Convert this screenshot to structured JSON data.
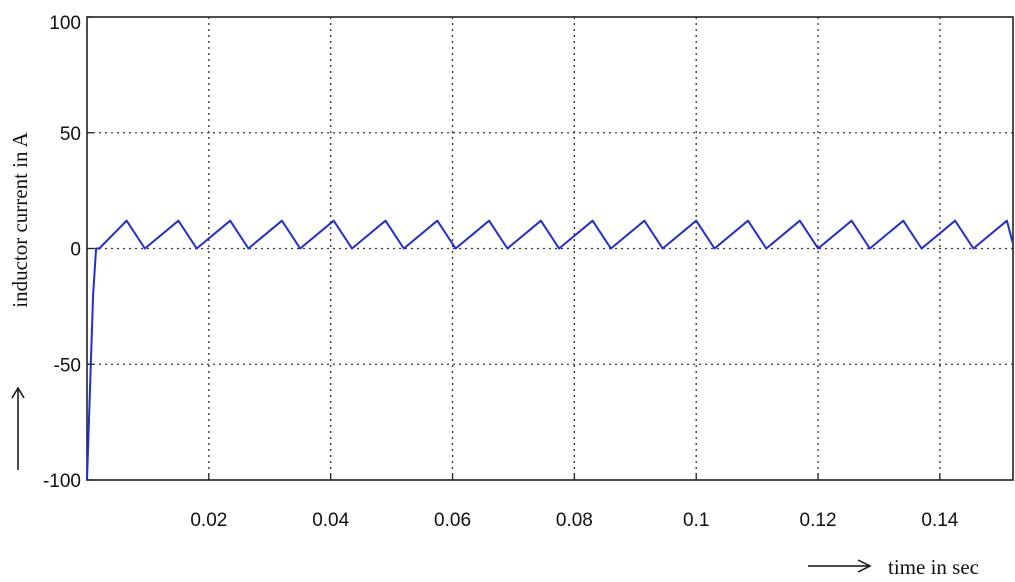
{
  "chart_data": {
    "type": "line",
    "title": "",
    "xlabel": "time  in sec",
    "ylabel": "inductor current in A",
    "xlim": [
      0,
      0.152
    ],
    "ylim": [
      -100,
      100
    ],
    "x_ticks": [
      0.02,
      0.04,
      0.06,
      0.08,
      0.1,
      0.12,
      0.14
    ],
    "x_tick_labels": [
      "0.02",
      "0.04",
      "0.06",
      "0.08",
      "0.1",
      "0.12",
      "0.14"
    ],
    "y_ticks": [
      -100,
      -50,
      0,
      50,
      100
    ],
    "y_tick_labels": [
      "-100",
      "-50",
      "0",
      "50",
      "100"
    ],
    "grid": true,
    "series": [
      {
        "color": "#1f2fd6",
        "x": [
          0,
          0.001,
          0.0015,
          0.002,
          0.0065,
          0.0095,
          0.015,
          0.018,
          0.0235,
          0.0265,
          0.032,
          0.035,
          0.0405,
          0.0435,
          0.049,
          0.052,
          0.0575,
          0.0605,
          0.066,
          0.069,
          0.0745,
          0.0775,
          0.083,
          0.086,
          0.0915,
          0.0945,
          0.1,
          0.103,
          0.1085,
          0.1115,
          0.117,
          0.12,
          0.1255,
          0.1285,
          0.134,
          0.137,
          0.1425,
          0.1455,
          0.151,
          0.152
        ],
        "y": [
          -100,
          -20,
          0,
          0,
          12,
          0,
          12,
          0,
          12,
          0,
          12,
          0,
          12,
          0,
          12,
          0,
          12,
          0,
          12,
          0,
          12,
          0,
          12,
          0,
          12,
          0,
          12,
          0,
          12,
          0,
          12,
          0,
          12,
          0,
          12,
          0,
          12,
          0,
          12,
          2
        ]
      }
    ]
  }
}
